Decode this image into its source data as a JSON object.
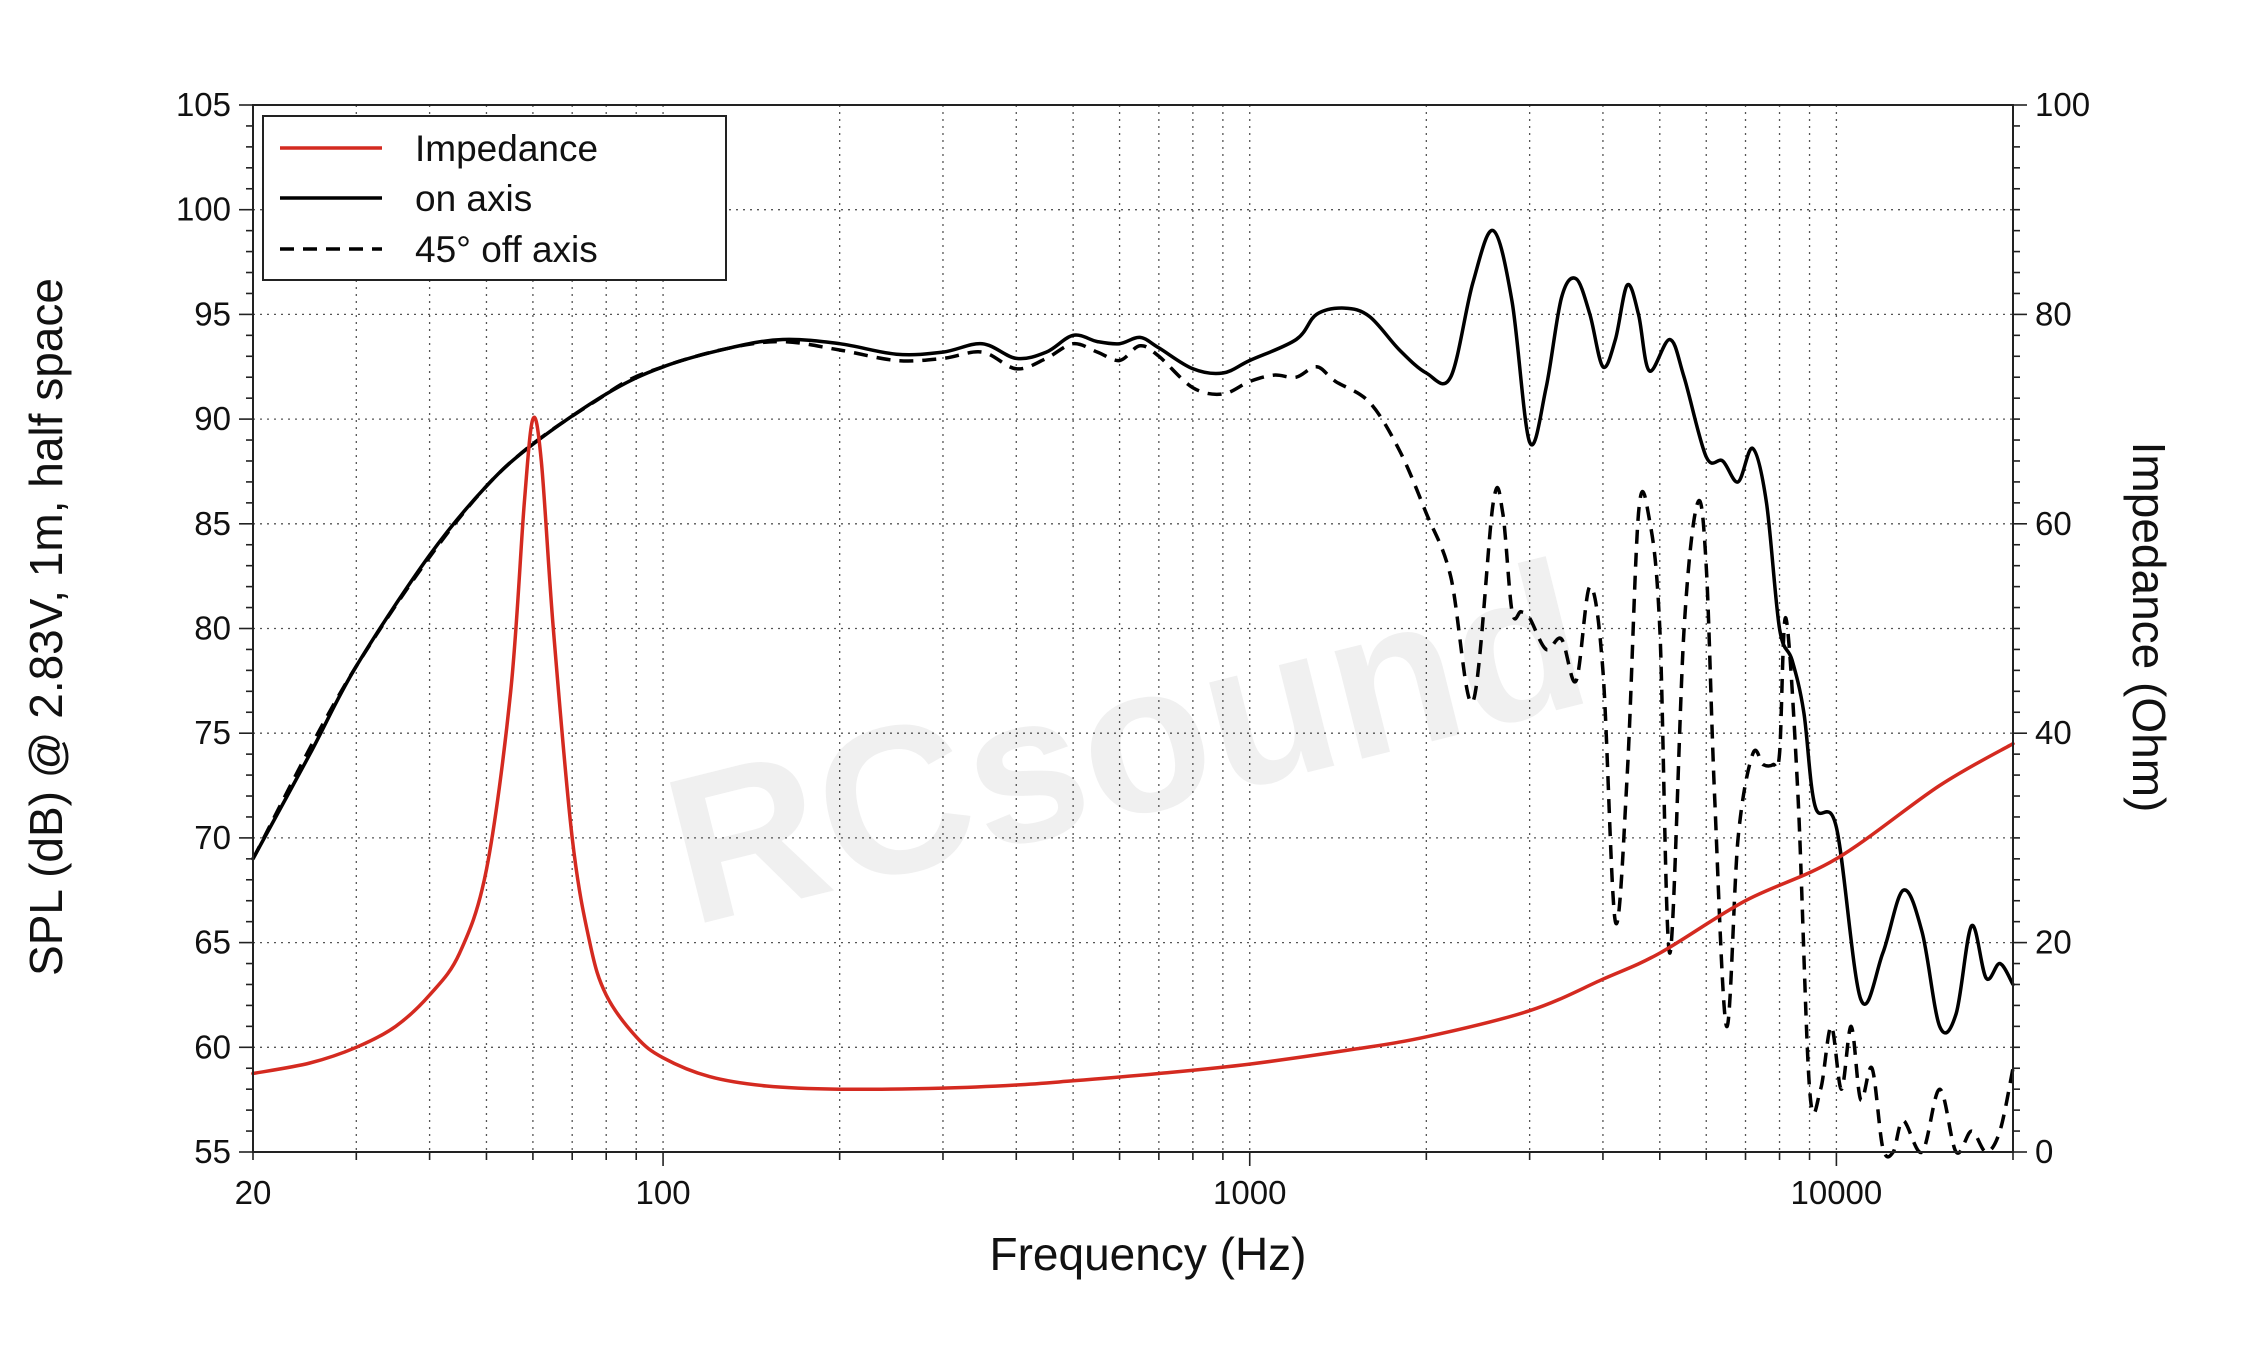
{
  "chart_data": {
    "type": "line",
    "xlabel": "Frequency (Hz)",
    "ylabel": "SPL (dB) @ 2.83V, 1m, half space",
    "y2label": "Impedance (Ohm)",
    "xscale": "log",
    "xlim": [
      20,
      20000
    ],
    "ylim": [
      55,
      105
    ],
    "y2lim": [
      0,
      100
    ],
    "grid": true,
    "legend": "top-left",
    "x_ticks": [
      "20",
      "100",
      "1000",
      "10000"
    ],
    "y_ticks": [
      "55",
      "60",
      "65",
      "70",
      "75",
      "80",
      "85",
      "90",
      "95",
      "100",
      "105"
    ],
    "y2_ticks": [
      "0",
      "20",
      "40",
      "60",
      "80",
      "100"
    ],
    "watermark": "RCsound",
    "series": [
      {
        "name": "Impedance",
        "axis": "right",
        "color": "#d42a20",
        "style": "solid",
        "points": [
          [
            20,
            7.5
          ],
          [
            25,
            8.5
          ],
          [
            30,
            10
          ],
          [
            35,
            12
          ],
          [
            40,
            15
          ],
          [
            45,
            19
          ],
          [
            50,
            27
          ],
          [
            55,
            44
          ],
          [
            58,
            62
          ],
          [
            60,
            70
          ],
          [
            62,
            66
          ],
          [
            65,
            50
          ],
          [
            70,
            30
          ],
          [
            75,
            20
          ],
          [
            80,
            15
          ],
          [
            90,
            11
          ],
          [
            100,
            9
          ],
          [
            120,
            7.2
          ],
          [
            150,
            6.3
          ],
          [
            200,
            6.0
          ],
          [
            300,
            6.1
          ],
          [
            400,
            6.4
          ],
          [
            500,
            6.8
          ],
          [
            700,
            7.5
          ],
          [
            1000,
            8.4
          ],
          [
            1500,
            9.8
          ],
          [
            2000,
            11
          ],
          [
            3000,
            13.5
          ],
          [
            4000,
            16.5
          ],
          [
            5000,
            19
          ],
          [
            7000,
            24
          ],
          [
            10000,
            28
          ],
          [
            15000,
            35
          ],
          [
            20000,
            39
          ]
        ]
      },
      {
        "name": "on axis",
        "axis": "left",
        "color": "#000000",
        "style": "solid",
        "points": [
          [
            20,
            69
          ],
          [
            25,
            74
          ],
          [
            30,
            78.2
          ],
          [
            40,
            83.5
          ],
          [
            50,
            86.8
          ],
          [
            60,
            88.8
          ],
          [
            80,
            91.2
          ],
          [
            100,
            92.5
          ],
          [
            130,
            93.4
          ],
          [
            160,
            93.8
          ],
          [
            200,
            93.6
          ],
          [
            250,
            93.1
          ],
          [
            300,
            93.2
          ],
          [
            350,
            93.6
          ],
          [
            400,
            92.9
          ],
          [
            450,
            93.2
          ],
          [
            500,
            94
          ],
          [
            550,
            93.7
          ],
          [
            600,
            93.6
          ],
          [
            650,
            93.9
          ],
          [
            700,
            93.4
          ],
          [
            800,
            92.4
          ],
          [
            900,
            92.2
          ],
          [
            1000,
            92.8
          ],
          [
            1200,
            93.8
          ],
          [
            1300,
            95
          ],
          [
            1450,
            95.3
          ],
          [
            1600,
            94.9
          ],
          [
            1800,
            93.3
          ],
          [
            2000,
            92.2
          ],
          [
            2200,
            92
          ],
          [
            2400,
            96.5
          ],
          [
            2600,
            99
          ],
          [
            2800,
            95.6
          ],
          [
            3000,
            88.9
          ],
          [
            3200,
            91.5
          ],
          [
            3400,
            95.8
          ],
          [
            3600,
            96.7
          ],
          [
            3800,
            95
          ],
          [
            4000,
            92.5
          ],
          [
            4200,
            93.8
          ],
          [
            4400,
            96.4
          ],
          [
            4600,
            95
          ],
          [
            4800,
            92.3
          ],
          [
            5200,
            93.8
          ],
          [
            5500,
            92
          ],
          [
            6000,
            88.2
          ],
          [
            6400,
            88
          ],
          [
            6800,
            87
          ],
          [
            7200,
            88.6
          ],
          [
            7600,
            86
          ],
          [
            8000,
            80
          ],
          [
            8400,
            78.5
          ],
          [
            8800,
            76
          ],
          [
            9200,
            71.5
          ],
          [
            10000,
            70.5
          ],
          [
            11000,
            62.3
          ],
          [
            12000,
            64.5
          ],
          [
            13000,
            67.5
          ],
          [
            14000,
            65.5
          ],
          [
            15000,
            61
          ],
          [
            16000,
            61.6
          ],
          [
            17000,
            65.8
          ],
          [
            18000,
            63.3
          ],
          [
            19000,
            64
          ],
          [
            20000,
            63
          ]
        ]
      },
      {
        "name": "45° off axis",
        "axis": "left",
        "color": "#000000",
        "style": "dashed",
        "points": [
          [
            20,
            69
          ],
          [
            30,
            78.2
          ],
          [
            50,
            86.8
          ],
          [
            80,
            91.2
          ],
          [
            100,
            92.5
          ],
          [
            130,
            93.4
          ],
          [
            160,
            93.7
          ],
          [
            200,
            93.3
          ],
          [
            250,
            92.8
          ],
          [
            300,
            92.9
          ],
          [
            350,
            93.2
          ],
          [
            400,
            92.4
          ],
          [
            450,
            92.9
          ],
          [
            500,
            93.6
          ],
          [
            550,
            93.2
          ],
          [
            600,
            92.8
          ],
          [
            650,
            93.5
          ],
          [
            700,
            93
          ],
          [
            800,
            91.5
          ],
          [
            900,
            91.2
          ],
          [
            1000,
            91.8
          ],
          [
            1100,
            92.1
          ],
          [
            1200,
            92
          ],
          [
            1300,
            92.5
          ],
          [
            1400,
            91.8
          ],
          [
            1600,
            90.8
          ],
          [
            1800,
            88.5
          ],
          [
            2000,
            85.5
          ],
          [
            2200,
            82.5
          ],
          [
            2400,
            76.5
          ],
          [
            2600,
            86
          ],
          [
            2700,
            85.5
          ],
          [
            2800,
            80.8
          ],
          [
            2900,
            80.8
          ],
          [
            3000,
            80.5
          ],
          [
            3200,
            79
          ],
          [
            3400,
            79.5
          ],
          [
            3600,
            77.5
          ],
          [
            3800,
            82
          ],
          [
            4000,
            78
          ],
          [
            4200,
            66
          ],
          [
            4400,
            73
          ],
          [
            4600,
            85.5
          ],
          [
            4800,
            85.2
          ],
          [
            5000,
            80
          ],
          [
            5200,
            64.5
          ],
          [
            5500,
            80
          ],
          [
            5800,
            86
          ],
          [
            6000,
            83
          ],
          [
            6200,
            72
          ],
          [
            6500,
            61
          ],
          [
            6800,
            70
          ],
          [
            7200,
            74
          ],
          [
            7500,
            73.5
          ],
          [
            7800,
            73.5
          ],
          [
            8000,
            74
          ],
          [
            8200,
            80.5
          ],
          [
            8600,
            72
          ],
          [
            9000,
            58
          ],
          [
            9400,
            58
          ],
          [
            9800,
            61
          ],
          [
            10200,
            58
          ],
          [
            10600,
            61
          ],
          [
            11000,
            57.5
          ],
          [
            11500,
            59
          ],
          [
            12000,
            55.2
          ],
          [
            12500,
            55
          ],
          [
            13000,
            56.5
          ],
          [
            14000,
            55
          ],
          [
            15000,
            58
          ],
          [
            16000,
            55
          ],
          [
            17000,
            56
          ],
          [
            18000,
            55
          ],
          [
            19000,
            56
          ],
          [
            20000,
            59
          ]
        ]
      }
    ]
  }
}
